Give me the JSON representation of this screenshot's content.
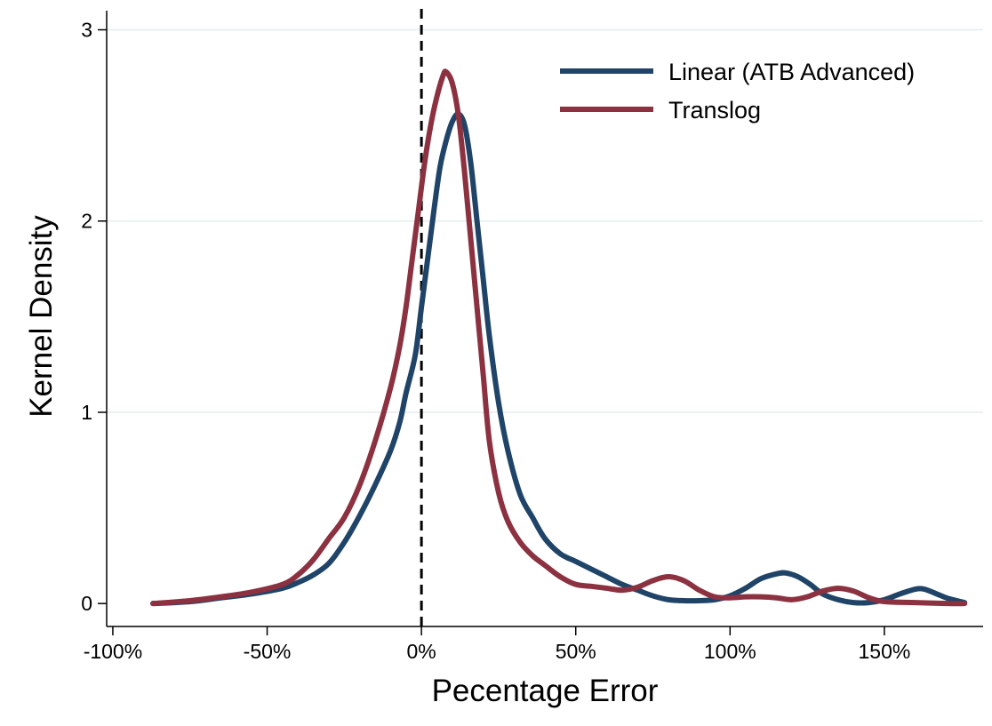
{
  "chart_data": {
    "type": "line",
    "title": "",
    "xlabel": "Pecentage Error",
    "ylabel": "Kernel Density",
    "xlim": [
      -102,
      182
    ],
    "ylim": [
      -0.12,
      3.1
    ],
    "x_ticks": [
      -100,
      -50,
      0,
      50,
      100,
      150
    ],
    "x_tick_labels": [
      "-100%",
      "-50%",
      "0%",
      "50%",
      "100%",
      "150%"
    ],
    "y_ticks": [
      0,
      1,
      2,
      3
    ],
    "y_tick_labels": [
      "0",
      "1",
      "2",
      "3"
    ],
    "grid": "horizontal",
    "legend_position": "top-right",
    "reference_line": {
      "x": 0,
      "style": "dashed",
      "color": "#000000"
    },
    "series": [
      {
        "name": "Linear (ATB Advanced)",
        "color": "#1f4468",
        "points": [
          [
            -87,
            0.0
          ],
          [
            -75,
            0.01
          ],
          [
            -65,
            0.03
          ],
          [
            -55,
            0.05
          ],
          [
            -45,
            0.08
          ],
          [
            -40,
            0.11
          ],
          [
            -35,
            0.15
          ],
          [
            -30,
            0.21
          ],
          [
            -25,
            0.32
          ],
          [
            -20,
            0.46
          ],
          [
            -15,
            0.62
          ],
          [
            -10,
            0.8
          ],
          [
            -7,
            0.95
          ],
          [
            -5,
            1.1
          ],
          [
            -2,
            1.3
          ],
          [
            0,
            1.55
          ],
          [
            2,
            1.8
          ],
          [
            4,
            2.05
          ],
          [
            6,
            2.28
          ],
          [
            8,
            2.42
          ],
          [
            10,
            2.52
          ],
          [
            12,
            2.56
          ],
          [
            14,
            2.5
          ],
          [
            16,
            2.3
          ],
          [
            18,
            2.0
          ],
          [
            20,
            1.7
          ],
          [
            22,
            1.4
          ],
          [
            25,
            1.05
          ],
          [
            28,
            0.8
          ],
          [
            32,
            0.57
          ],
          [
            36,
            0.45
          ],
          [
            40,
            0.34
          ],
          [
            45,
            0.26
          ],
          [
            50,
            0.22
          ],
          [
            55,
            0.18
          ],
          [
            60,
            0.14
          ],
          [
            65,
            0.1
          ],
          [
            70,
            0.07
          ],
          [
            75,
            0.04
          ],
          [
            80,
            0.02
          ],
          [
            85,
            0.015
          ],
          [
            90,
            0.015
          ],
          [
            95,
            0.02
          ],
          [
            100,
            0.04
          ],
          [
            105,
            0.08
          ],
          [
            110,
            0.13
          ],
          [
            115,
            0.155
          ],
          [
            118,
            0.16
          ],
          [
            122,
            0.14
          ],
          [
            126,
            0.1
          ],
          [
            130,
            0.05
          ],
          [
            135,
            0.02
          ],
          [
            140,
            0.005
          ],
          [
            145,
            0.005
          ],
          [
            150,
            0.02
          ],
          [
            155,
            0.05
          ],
          [
            160,
            0.075
          ],
          [
            163,
            0.075
          ],
          [
            167,
            0.05
          ],
          [
            171,
            0.025
          ],
          [
            176,
            0.005
          ]
        ]
      },
      {
        "name": "Translog",
        "color": "#8b3140",
        "points": [
          [
            -87,
            0.0
          ],
          [
            -75,
            0.015
          ],
          [
            -65,
            0.035
          ],
          [
            -55,
            0.06
          ],
          [
            -45,
            0.1
          ],
          [
            -40,
            0.15
          ],
          [
            -35,
            0.23
          ],
          [
            -30,
            0.34
          ],
          [
            -25,
            0.45
          ],
          [
            -20,
            0.62
          ],
          [
            -15,
            0.85
          ],
          [
            -10,
            1.13
          ],
          [
            -7,
            1.35
          ],
          [
            -5,
            1.55
          ],
          [
            -3,
            1.8
          ],
          [
            -1,
            2.05
          ],
          [
            1,
            2.3
          ],
          [
            3,
            2.5
          ],
          [
            5,
            2.65
          ],
          [
            7,
            2.76
          ],
          [
            8,
            2.78
          ],
          [
            10,
            2.72
          ],
          [
            12,
            2.55
          ],
          [
            14,
            2.25
          ],
          [
            16,
            1.9
          ],
          [
            18,
            1.55
          ],
          [
            20,
            1.2
          ],
          [
            22,
            0.85
          ],
          [
            25,
            0.58
          ],
          [
            28,
            0.43
          ],
          [
            32,
            0.32
          ],
          [
            36,
            0.25
          ],
          [
            40,
            0.2
          ],
          [
            45,
            0.14
          ],
          [
            50,
            0.1
          ],
          [
            55,
            0.09
          ],
          [
            60,
            0.08
          ],
          [
            65,
            0.07
          ],
          [
            70,
            0.085
          ],
          [
            75,
            0.12
          ],
          [
            80,
            0.14
          ],
          [
            85,
            0.12
          ],
          [
            90,
            0.07
          ],
          [
            95,
            0.035
          ],
          [
            100,
            0.03
          ],
          [
            105,
            0.035
          ],
          [
            110,
            0.035
          ],
          [
            115,
            0.03
          ],
          [
            120,
            0.02
          ],
          [
            125,
            0.035
          ],
          [
            130,
            0.065
          ],
          [
            135,
            0.08
          ],
          [
            140,
            0.065
          ],
          [
            145,
            0.03
          ],
          [
            150,
            0.01
          ],
          [
            160,
            0.005
          ],
          [
            170,
            0.0
          ],
          [
            176,
            0.0
          ]
        ]
      }
    ]
  }
}
